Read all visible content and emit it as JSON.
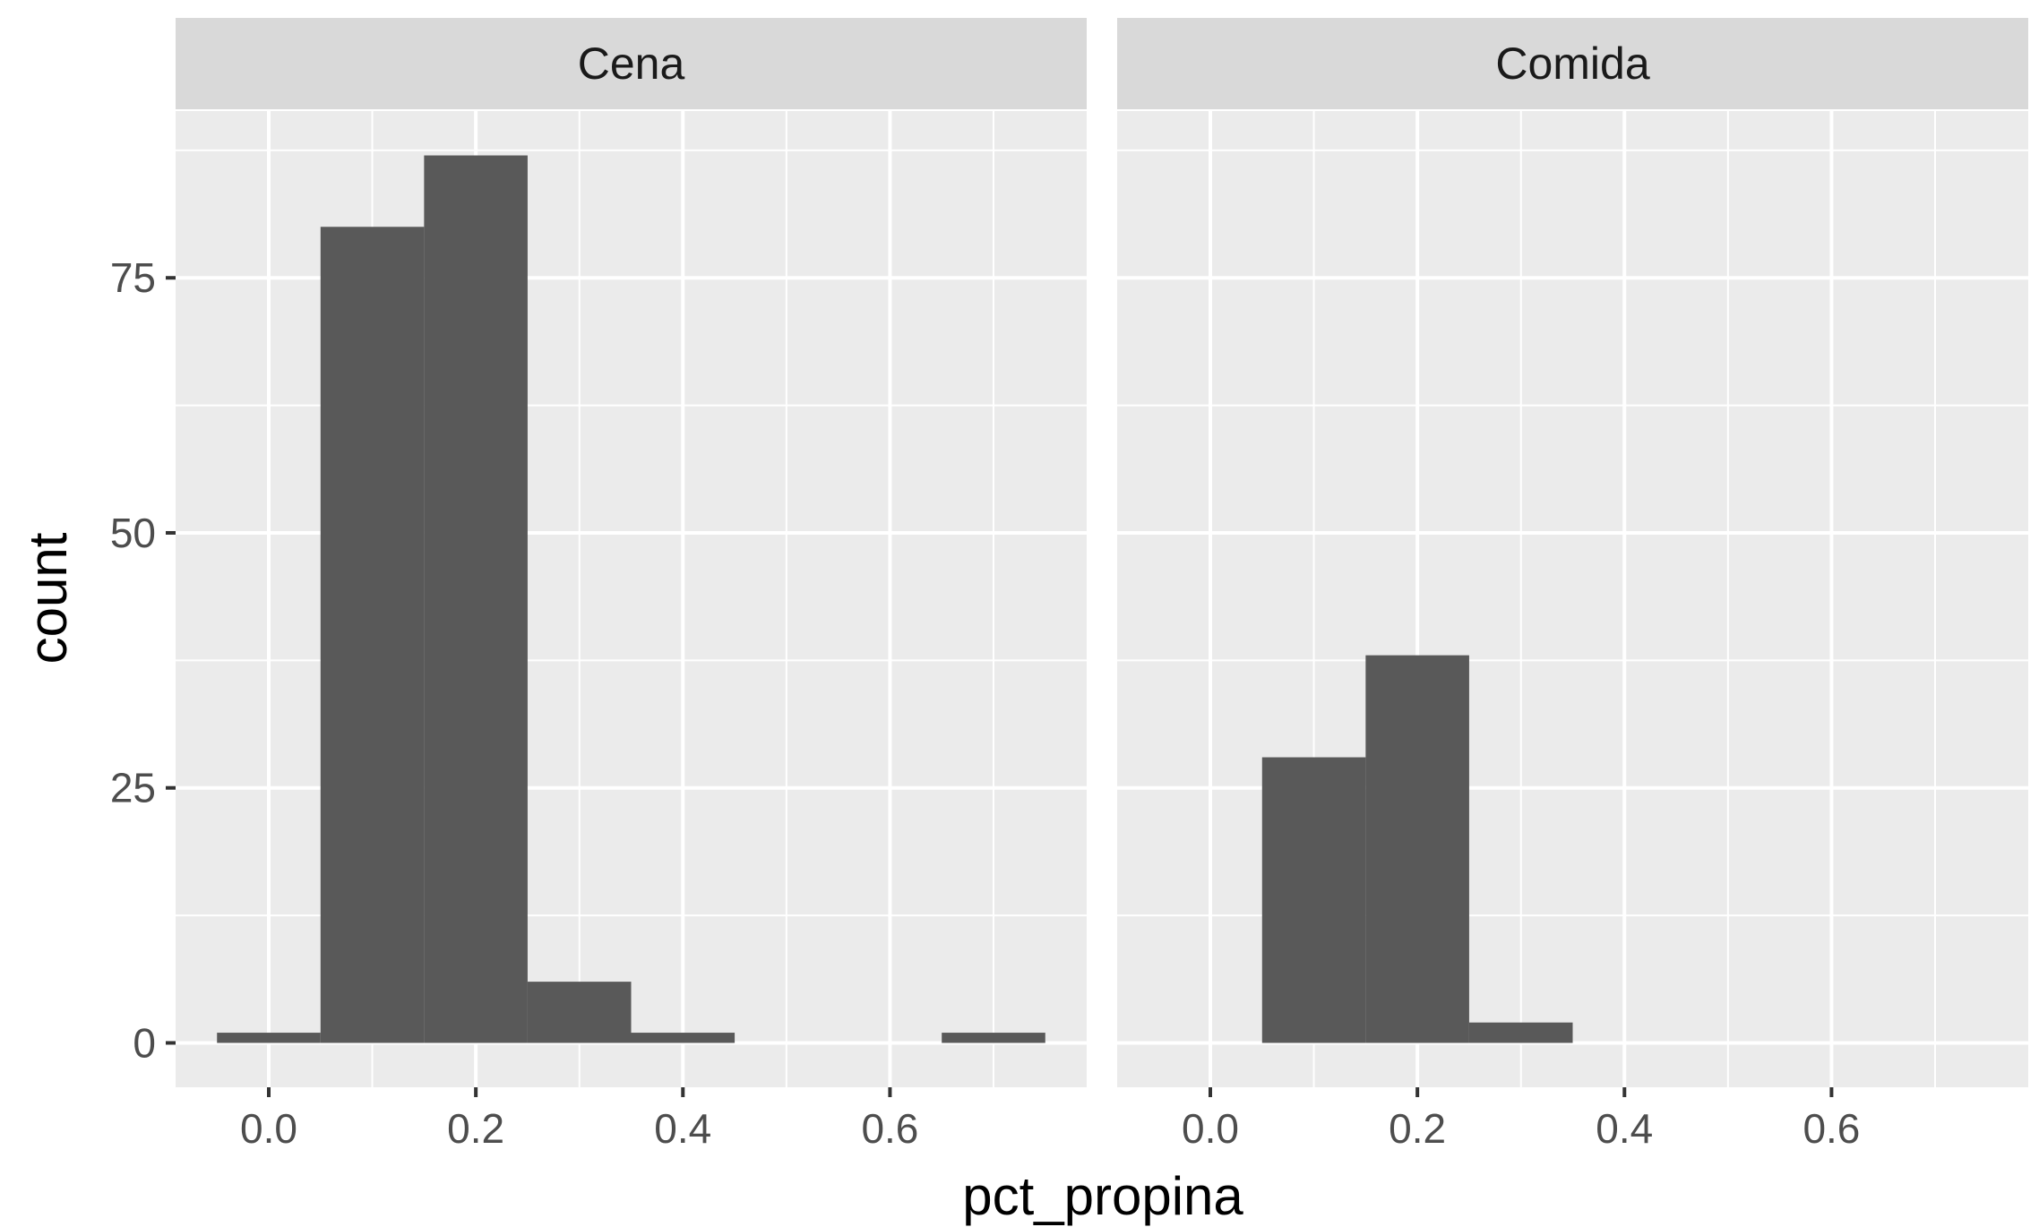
{
  "chart_data": {
    "type": "bar",
    "subtype": "faceted histogram",
    "xlabel": "pct_propina",
    "ylabel": "count",
    "xlim": [
      -0.09,
      0.79
    ],
    "ylim": [
      -4.35,
      91.35
    ],
    "x_ticks": [
      0.0,
      0.2,
      0.4,
      0.6
    ],
    "x_tick_labels": [
      "0.0",
      "0.2",
      "0.4",
      "0.6"
    ],
    "y_ticks": [
      0,
      25,
      50,
      75
    ],
    "y_tick_labels": [
      "0",
      "25",
      "50",
      "75"
    ],
    "bin_width": 0.1,
    "bar_color": "#595959",
    "panel_background": "#ebebeb",
    "strip_background": "#d9d9d9",
    "grid": true,
    "facets": [
      {
        "label": "Cena",
        "bins": [
          {
            "x": 0.0,
            "count": 1
          },
          {
            "x": 0.1,
            "count": 80
          },
          {
            "x": 0.2,
            "count": 87
          },
          {
            "x": 0.3,
            "count": 6
          },
          {
            "x": 0.4,
            "count": 1
          },
          {
            "x": 0.5,
            "count": 0
          },
          {
            "x": 0.6,
            "count": 0
          },
          {
            "x": 0.7,
            "count": 1
          }
        ]
      },
      {
        "label": "Comida",
        "bins": [
          {
            "x": 0.0,
            "count": 0
          },
          {
            "x": 0.1,
            "count": 28
          },
          {
            "x": 0.2,
            "count": 38
          },
          {
            "x": 0.3,
            "count": 2
          },
          {
            "x": 0.4,
            "count": 0
          },
          {
            "x": 0.5,
            "count": 0
          },
          {
            "x": 0.6,
            "count": 0
          },
          {
            "x": 0.7,
            "count": 0
          }
        ]
      }
    ]
  }
}
